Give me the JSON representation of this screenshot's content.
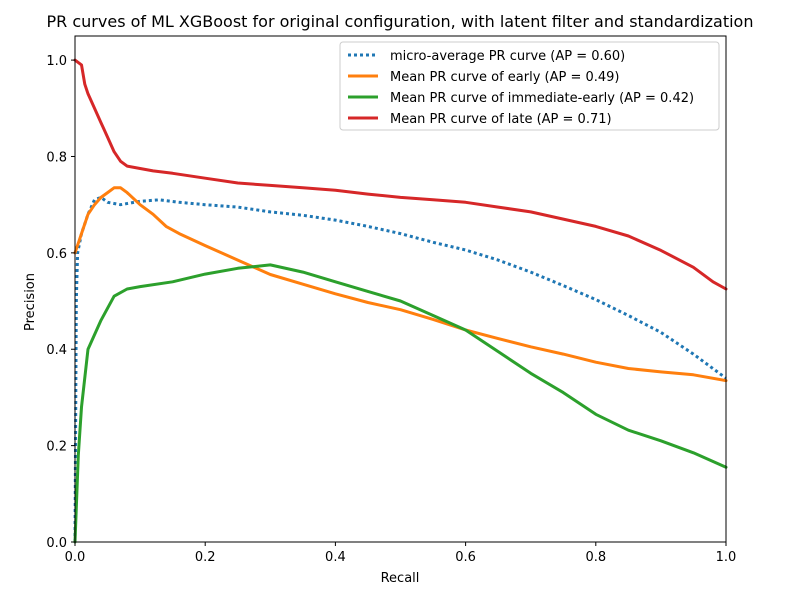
{
  "chart_data": {
    "type": "line",
    "title": "PR curves of ML XGBoost for original configuration, with latent filter and standardization",
    "xlabel": "Recall",
    "ylabel": "Precision",
    "xlim": [
      0.0,
      1.0
    ],
    "ylim": [
      0.0,
      1.05
    ],
    "x_ticks": [
      "0.0",
      "0.2",
      "0.4",
      "0.6",
      "0.8",
      "1.0"
    ],
    "y_ticks": [
      "0.0",
      "0.2",
      "0.4",
      "0.6",
      "0.8",
      "1.0"
    ],
    "grid": false,
    "legend_position": "top-right",
    "series": [
      {
        "name": "micro-average PR curve (AP = 0.60)",
        "color": "#1f77b4",
        "style": "dotted",
        "points": [
          [
            0.0,
            0.0
          ],
          [
            0.002,
            0.5
          ],
          [
            0.004,
            0.6
          ],
          [
            0.01,
            0.64
          ],
          [
            0.02,
            0.68
          ],
          [
            0.03,
            0.71
          ],
          [
            0.04,
            0.715
          ],
          [
            0.05,
            0.705
          ],
          [
            0.07,
            0.7
          ],
          [
            0.1,
            0.707
          ],
          [
            0.13,
            0.71
          ],
          [
            0.16,
            0.705
          ],
          [
            0.2,
            0.7
          ],
          [
            0.25,
            0.695
          ],
          [
            0.3,
            0.685
          ],
          [
            0.35,
            0.678
          ],
          [
            0.4,
            0.668
          ],
          [
            0.45,
            0.655
          ],
          [
            0.5,
            0.64
          ],
          [
            0.55,
            0.622
          ],
          [
            0.6,
            0.606
          ],
          [
            0.65,
            0.585
          ],
          [
            0.7,
            0.56
          ],
          [
            0.75,
            0.532
          ],
          [
            0.8,
            0.503
          ],
          [
            0.85,
            0.47
          ],
          [
            0.9,
            0.435
          ],
          [
            0.95,
            0.39
          ],
          [
            1.0,
            0.34
          ]
        ]
      },
      {
        "name": "Mean PR curve of early (AP = 0.49)",
        "color": "#ff7f0e",
        "style": "solid",
        "points": [
          [
            0.0,
            0.6
          ],
          [
            0.005,
            0.62
          ],
          [
            0.01,
            0.64
          ],
          [
            0.02,
            0.68
          ],
          [
            0.03,
            0.7
          ],
          [
            0.04,
            0.715
          ],
          [
            0.05,
            0.725
          ],
          [
            0.06,
            0.735
          ],
          [
            0.07,
            0.735
          ],
          [
            0.08,
            0.725
          ],
          [
            0.1,
            0.7
          ],
          [
            0.12,
            0.68
          ],
          [
            0.14,
            0.655
          ],
          [
            0.16,
            0.64
          ],
          [
            0.2,
            0.615
          ],
          [
            0.25,
            0.585
          ],
          [
            0.3,
            0.555
          ],
          [
            0.35,
            0.535
          ],
          [
            0.4,
            0.515
          ],
          [
            0.45,
            0.497
          ],
          [
            0.5,
            0.482
          ],
          [
            0.55,
            0.462
          ],
          [
            0.6,
            0.44
          ],
          [
            0.65,
            0.422
          ],
          [
            0.7,
            0.405
          ],
          [
            0.75,
            0.39
          ],
          [
            0.8,
            0.373
          ],
          [
            0.85,
            0.36
          ],
          [
            0.9,
            0.353
          ],
          [
            0.95,
            0.347
          ],
          [
            1.0,
            0.335
          ]
        ]
      },
      {
        "name": "Mean PR curve of immediate-early (AP = 0.42)",
        "color": "#2ca02c",
        "style": "solid",
        "points": [
          [
            0.0,
            0.0
          ],
          [
            0.005,
            0.18
          ],
          [
            0.01,
            0.28
          ],
          [
            0.02,
            0.4
          ],
          [
            0.04,
            0.46
          ],
          [
            0.06,
            0.51
          ],
          [
            0.08,
            0.525
          ],
          [
            0.1,
            0.53
          ],
          [
            0.15,
            0.54
          ],
          [
            0.2,
            0.556
          ],
          [
            0.25,
            0.568
          ],
          [
            0.3,
            0.575
          ],
          [
            0.35,
            0.56
          ],
          [
            0.4,
            0.54
          ],
          [
            0.45,
            0.52
          ],
          [
            0.5,
            0.5
          ],
          [
            0.55,
            0.47
          ],
          [
            0.6,
            0.44
          ],
          [
            0.65,
            0.395
          ],
          [
            0.7,
            0.35
          ],
          [
            0.75,
            0.31
          ],
          [
            0.8,
            0.265
          ],
          [
            0.85,
            0.232
          ],
          [
            0.9,
            0.21
          ],
          [
            0.95,
            0.185
          ],
          [
            1.0,
            0.155
          ]
        ]
      },
      {
        "name": "Mean PR curve of late (AP = 0.71)",
        "color": "#d62728",
        "style": "solid",
        "points": [
          [
            0.0,
            1.0
          ],
          [
            0.01,
            0.99
          ],
          [
            0.015,
            0.95
          ],
          [
            0.02,
            0.93
          ],
          [
            0.03,
            0.9
          ],
          [
            0.04,
            0.87
          ],
          [
            0.05,
            0.84
          ],
          [
            0.06,
            0.81
          ],
          [
            0.07,
            0.79
          ],
          [
            0.08,
            0.78
          ],
          [
            0.1,
            0.775
          ],
          [
            0.12,
            0.77
          ],
          [
            0.15,
            0.765
          ],
          [
            0.2,
            0.755
          ],
          [
            0.25,
            0.745
          ],
          [
            0.3,
            0.74
          ],
          [
            0.35,
            0.735
          ],
          [
            0.4,
            0.73
          ],
          [
            0.45,
            0.722
          ],
          [
            0.5,
            0.715
          ],
          [
            0.55,
            0.71
          ],
          [
            0.6,
            0.705
          ],
          [
            0.65,
            0.695
          ],
          [
            0.7,
            0.685
          ],
          [
            0.75,
            0.67
          ],
          [
            0.8,
            0.655
          ],
          [
            0.85,
            0.635
          ],
          [
            0.9,
            0.605
          ],
          [
            0.95,
            0.57
          ],
          [
            0.98,
            0.54
          ],
          [
            1.0,
            0.525
          ]
        ]
      }
    ]
  }
}
